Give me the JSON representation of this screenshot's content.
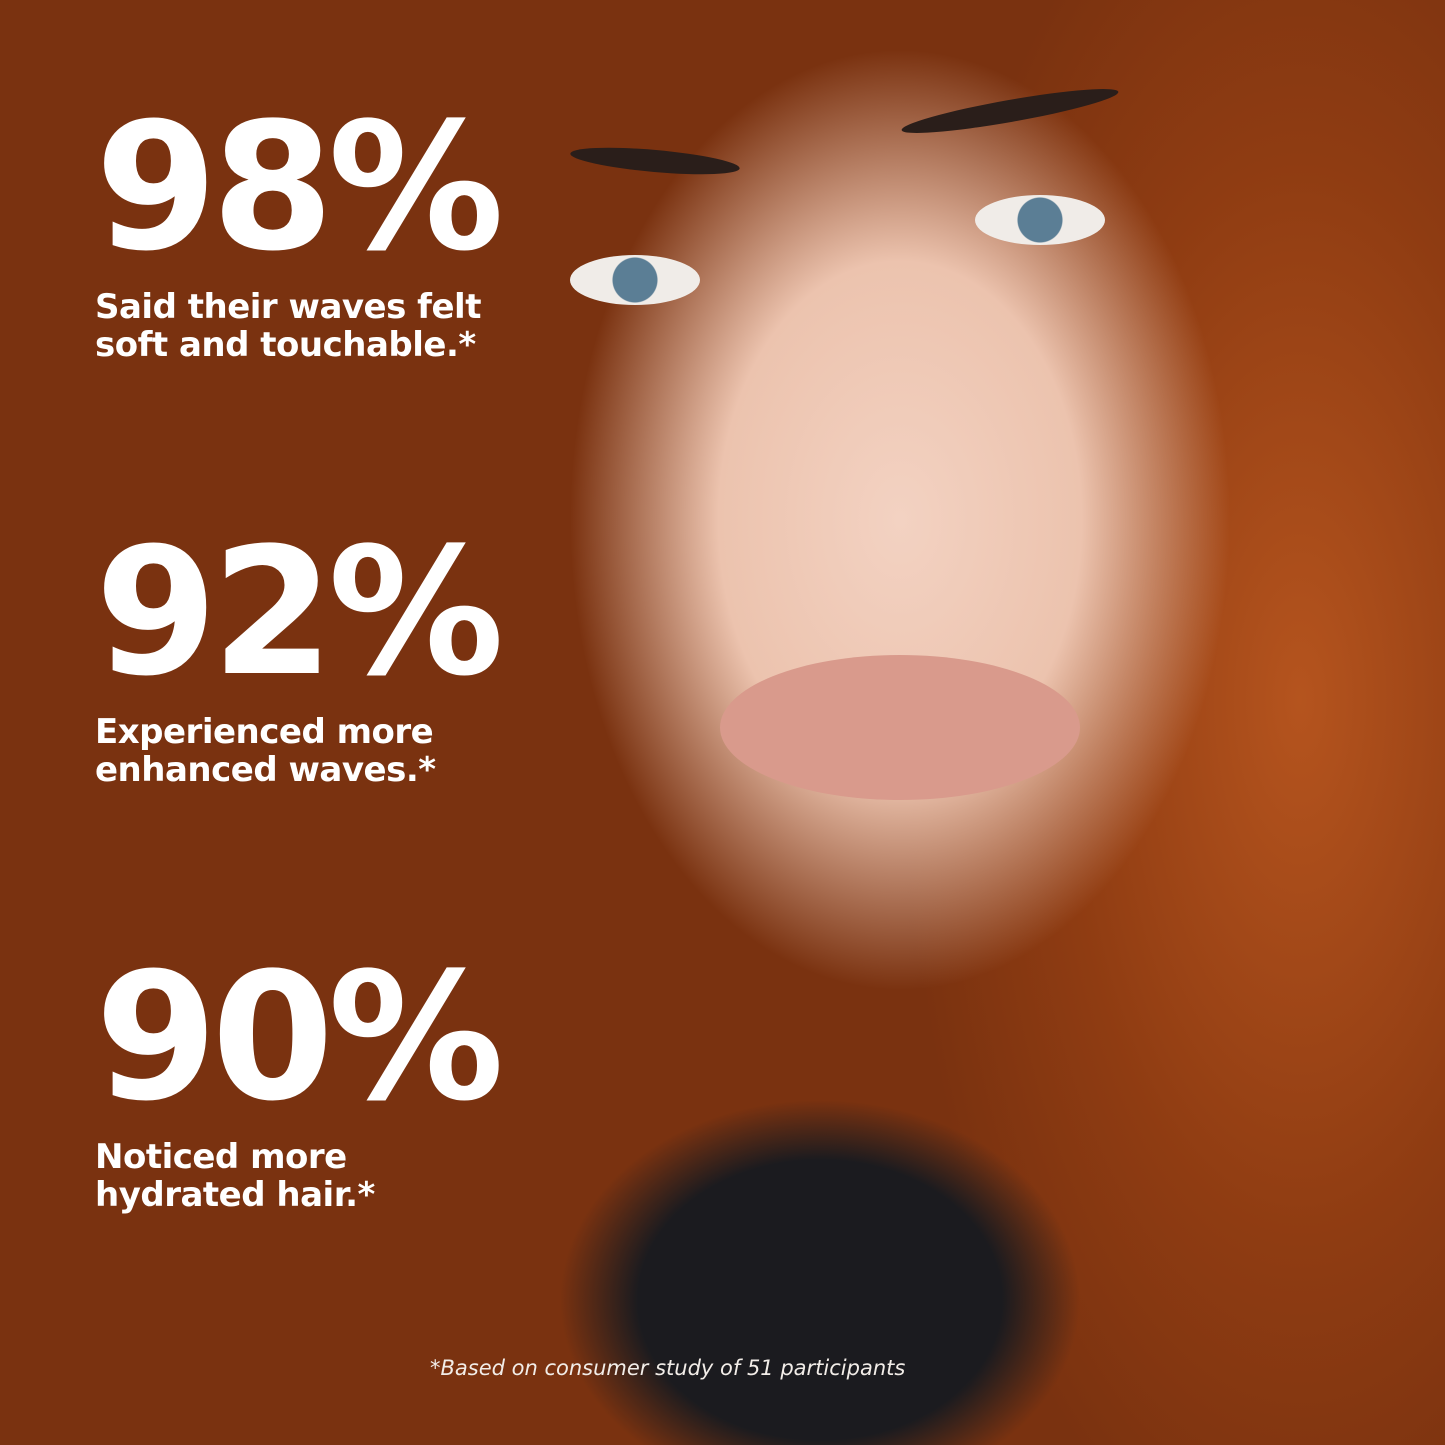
{
  "stats": [
    {
      "value": "98%",
      "description_line1": "Said their waves felt",
      "description_line2": "soft and touchable.*"
    },
    {
      "value": "92%",
      "description_line1": "Experienced more",
      "description_line2": "enhanced waves.*"
    },
    {
      "value": "90%",
      "description_line1": "Noticed more",
      "description_line2": "hydrated hair.*"
    }
  ],
  "footnote": "*Based on consumer study of 51 participants",
  "colors": {
    "text": "#ffffff",
    "hair": "#b9581f"
  }
}
